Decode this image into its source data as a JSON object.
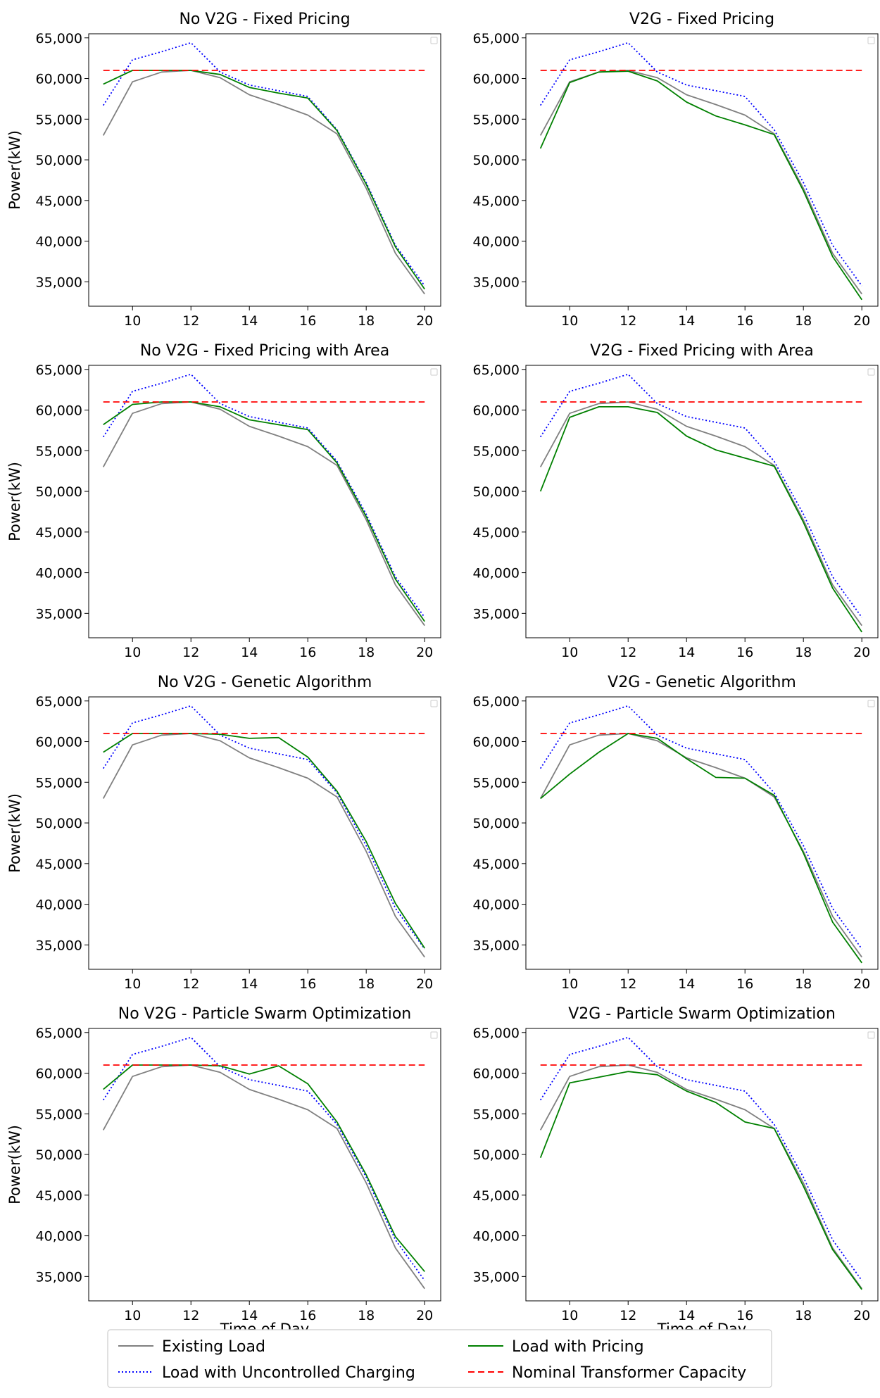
{
  "figure": {
    "xlabel": "Time of Day",
    "ylabel": "Power(kW)",
    "x_ticks": [
      10,
      12,
      14,
      16,
      18,
      20
    ],
    "y_ticks": [
      35000,
      40000,
      45000,
      50000,
      55000,
      60000,
      65000
    ],
    "y_tick_labels": [
      "35,000",
      "40,000",
      "45,000",
      "50,000",
      "55,000",
      "60,000",
      "65,000"
    ]
  },
  "legend": {
    "placement": "bottom-center",
    "items": [
      {
        "label": "Existing Load",
        "color": "#808080",
        "style": "solid"
      },
      {
        "label": "Load with Uncontrolled Charging",
        "color": "#0000ff",
        "style": "dotted"
      },
      {
        "label": "Load with Pricing",
        "color": "#008000",
        "style": "solid"
      },
      {
        "label": "Nominal Transformer Capacity",
        "color": "#ff0000",
        "style": "dashed"
      }
    ]
  },
  "chart_data": [
    {
      "type": "line",
      "title": "No V2G - Fixed Pricing",
      "x": [
        9,
        10,
        11,
        12,
        13,
        14,
        15,
        16,
        17,
        18,
        19,
        20
      ],
      "ylim": [
        32000,
        65500
      ],
      "xlim": [
        8.5,
        20.55
      ],
      "series": [
        {
          "name": "Existing Load",
          "color": "#808080",
          "values": [
            53000,
            59600,
            60800,
            61000,
            60100,
            58000,
            56800,
            55500,
            53200,
            46500,
            38500,
            33500
          ]
        },
        {
          "name": "Load with Uncontrolled Charging",
          "color": "#0000ff",
          "values": [
            56700,
            62300,
            63300,
            64400,
            60800,
            59200,
            58500,
            57800,
            53700,
            47200,
            39500,
            34500
          ]
        },
        {
          "name": "Load with Pricing",
          "color": "#008000",
          "values": [
            59300,
            61000,
            61000,
            61000,
            60500,
            58900,
            58200,
            57600,
            53600,
            47000,
            39300,
            34100
          ]
        },
        {
          "name": "Nominal Transformer Capacity",
          "color": "#ff0000",
          "values": [
            61000,
            61000,
            61000,
            61000,
            61000,
            61000,
            61000,
            61000,
            61000,
            61000,
            61000,
            61000
          ]
        }
      ]
    },
    {
      "type": "line",
      "title": "V2G - Fixed Pricing",
      "x": [
        9,
        10,
        11,
        12,
        13,
        14,
        15,
        16,
        17,
        18,
        19,
        20
      ],
      "ylim": [
        32000,
        65500
      ],
      "xlim": [
        8.5,
        20.55
      ],
      "series": [
        {
          "name": "Existing Load",
          "color": "#808080",
          "values": [
            53000,
            59600,
            60800,
            61000,
            60100,
            58000,
            56800,
            55500,
            53200,
            46500,
            38500,
            33500
          ]
        },
        {
          "name": "Load with Uncontrolled Charging",
          "color": "#0000ff",
          "values": [
            56700,
            62300,
            63300,
            64400,
            60800,
            59200,
            58500,
            57800,
            53700,
            47200,
            39500,
            34500
          ]
        },
        {
          "name": "Load with Pricing",
          "color": "#008000",
          "values": [
            51400,
            59500,
            60800,
            60900,
            59700,
            57100,
            55400,
            54300,
            53100,
            46200,
            38100,
            32800
          ]
        },
        {
          "name": "Nominal Transformer Capacity",
          "color": "#ff0000",
          "values": [
            61000,
            61000,
            61000,
            61000,
            61000,
            61000,
            61000,
            61000,
            61000,
            61000,
            61000,
            61000
          ]
        }
      ]
    },
    {
      "type": "line",
      "title": "No V2G - Fixed Pricing with Area",
      "x": [
        9,
        10,
        11,
        12,
        13,
        14,
        15,
        16,
        17,
        18,
        19,
        20
      ],
      "ylim": [
        32000,
        65500
      ],
      "xlim": [
        8.5,
        20.55
      ],
      "series": [
        {
          "name": "Existing Load",
          "color": "#808080",
          "values": [
            53000,
            59600,
            60800,
            61000,
            60100,
            58000,
            56800,
            55500,
            53200,
            46500,
            38500,
            33500
          ]
        },
        {
          "name": "Load with Uncontrolled Charging",
          "color": "#0000ff",
          "values": [
            56700,
            62300,
            63300,
            64400,
            60800,
            59200,
            58500,
            57800,
            53700,
            47200,
            39500,
            34500
          ]
        },
        {
          "name": "Load with Pricing",
          "color": "#008000",
          "values": [
            58200,
            60700,
            61000,
            61000,
            60400,
            58800,
            58200,
            57600,
            53500,
            46900,
            39200,
            34000
          ]
        },
        {
          "name": "Nominal Transformer Capacity",
          "color": "#ff0000",
          "values": [
            61000,
            61000,
            61000,
            61000,
            61000,
            61000,
            61000,
            61000,
            61000,
            61000,
            61000,
            61000
          ]
        }
      ]
    },
    {
      "type": "line",
      "title": "V2G - Fixed Pricing with Area",
      "x": [
        9,
        10,
        11,
        12,
        13,
        14,
        15,
        16,
        17,
        18,
        19,
        20
      ],
      "ylim": [
        32000,
        65500
      ],
      "xlim": [
        8.5,
        20.55
      ],
      "series": [
        {
          "name": "Existing Load",
          "color": "#808080",
          "values": [
            53000,
            59600,
            60800,
            61000,
            60100,
            58000,
            56800,
            55500,
            53200,
            46500,
            38500,
            33500
          ]
        },
        {
          "name": "Load with Uncontrolled Charging",
          "color": "#0000ff",
          "values": [
            56700,
            62300,
            63300,
            64400,
            60800,
            59200,
            58500,
            57800,
            53700,
            47200,
            39500,
            34500
          ]
        },
        {
          "name": "Load with Pricing",
          "color": "#008000",
          "values": [
            50000,
            59100,
            60400,
            60400,
            59700,
            56800,
            55100,
            54100,
            53100,
            46200,
            38100,
            32700
          ]
        },
        {
          "name": "Nominal Transformer Capacity",
          "color": "#ff0000",
          "values": [
            61000,
            61000,
            61000,
            61000,
            61000,
            61000,
            61000,
            61000,
            61000,
            61000,
            61000,
            61000
          ]
        }
      ]
    },
    {
      "type": "line",
      "title": "No V2G - Genetic Algorithm",
      "x": [
        9,
        10,
        11,
        12,
        13,
        14,
        15,
        16,
        17,
        18,
        19,
        20
      ],
      "ylim": [
        32000,
        65500
      ],
      "xlim": [
        8.5,
        20.55
      ],
      "series": [
        {
          "name": "Existing Load",
          "color": "#808080",
          "values": [
            53000,
            59600,
            60800,
            61000,
            60100,
            58000,
            56800,
            55500,
            53200,
            46500,
            38500,
            33500
          ]
        },
        {
          "name": "Load with Uncontrolled Charging",
          "color": "#0000ff",
          "values": [
            56700,
            62300,
            63300,
            64400,
            60800,
            59200,
            58500,
            57800,
            53700,
            47200,
            39500,
            34500
          ]
        },
        {
          "name": "Load with Pricing",
          "color": "#008000",
          "values": [
            58700,
            61000,
            61000,
            61000,
            60900,
            60400,
            60500,
            58100,
            53900,
            47700,
            40100,
            34600
          ]
        },
        {
          "name": "Nominal Transformer Capacity",
          "color": "#ff0000",
          "values": [
            61000,
            61000,
            61000,
            61000,
            61000,
            61000,
            61000,
            61000,
            61000,
            61000,
            61000,
            61000
          ]
        }
      ]
    },
    {
      "type": "line",
      "title": "V2G - Genetic Algorithm",
      "x": [
        9,
        10,
        11,
        12,
        13,
        14,
        15,
        16,
        17,
        18,
        19,
        20
      ],
      "ylim": [
        32000,
        65500
      ],
      "xlim": [
        8.5,
        20.55
      ],
      "series": [
        {
          "name": "Existing Load",
          "color": "#808080",
          "values": [
            53000,
            59600,
            60800,
            61000,
            60100,
            58000,
            56800,
            55500,
            53200,
            46500,
            38500,
            33500
          ]
        },
        {
          "name": "Load with Uncontrolled Charging",
          "color": "#0000ff",
          "values": [
            56700,
            62300,
            63300,
            64400,
            60800,
            59200,
            58500,
            57800,
            53700,
            47200,
            39500,
            34500
          ]
        },
        {
          "name": "Load with Pricing",
          "color": "#008000",
          "values": [
            53000,
            56000,
            58700,
            61000,
            60400,
            57900,
            55600,
            55500,
            53400,
            46300,
            37800,
            32800
          ]
        },
        {
          "name": "Nominal Transformer Capacity",
          "color": "#ff0000",
          "values": [
            61000,
            61000,
            61000,
            61000,
            61000,
            61000,
            61000,
            61000,
            61000,
            61000,
            61000,
            61000
          ]
        }
      ]
    },
    {
      "type": "line",
      "title": "No V2G - Particle Swarm Optimization",
      "x": [
        9,
        10,
        11,
        12,
        13,
        14,
        15,
        16,
        17,
        18,
        19,
        20
      ],
      "ylim": [
        32000,
        65500
      ],
      "xlim": [
        8.5,
        20.55
      ],
      "series": [
        {
          "name": "Existing Load",
          "color": "#808080",
          "values": [
            53000,
            59600,
            60800,
            61000,
            60100,
            58000,
            56800,
            55500,
            53200,
            46500,
            38500,
            33500
          ]
        },
        {
          "name": "Load with Uncontrolled Charging",
          "color": "#0000ff",
          "values": [
            56700,
            62300,
            63300,
            64400,
            60800,
            59200,
            58500,
            57800,
            53700,
            47200,
            39500,
            34500
          ]
        },
        {
          "name": "Load with Pricing",
          "color": "#008000",
          "values": [
            58000,
            61000,
            61000,
            61000,
            60900,
            59900,
            60900,
            58700,
            54000,
            47500,
            39900,
            35600
          ]
        },
        {
          "name": "Nominal Transformer Capacity",
          "color": "#ff0000",
          "values": [
            61000,
            61000,
            61000,
            61000,
            61000,
            61000,
            61000,
            61000,
            61000,
            61000,
            61000,
            61000
          ]
        }
      ]
    },
    {
      "type": "line",
      "title": "V2G - Particle Swarm Optimization",
      "x": [
        9,
        10,
        11,
        12,
        13,
        14,
        15,
        16,
        17,
        18,
        19,
        20
      ],
      "ylim": [
        32000,
        65500
      ],
      "xlim": [
        8.5,
        20.55
      ],
      "series": [
        {
          "name": "Existing Load",
          "color": "#808080",
          "values": [
            53000,
            59600,
            60800,
            61000,
            60100,
            58000,
            56800,
            55500,
            53200,
            46500,
            38500,
            33500
          ]
        },
        {
          "name": "Load with Uncontrolled Charging",
          "color": "#0000ff",
          "values": [
            56700,
            62300,
            63300,
            64400,
            60800,
            59200,
            58500,
            57800,
            53700,
            47200,
            39500,
            34500
          ]
        },
        {
          "name": "Load with Pricing",
          "color": "#008000",
          "values": [
            49600,
            58800,
            59500,
            60200,
            59800,
            57800,
            56400,
            54000,
            53200,
            46100,
            38300,
            33400
          ]
        },
        {
          "name": "Nominal Transformer Capacity",
          "color": "#ff0000",
          "values": [
            61000,
            61000,
            61000,
            61000,
            61000,
            61000,
            61000,
            61000,
            61000,
            61000,
            61000,
            61000
          ]
        }
      ]
    }
  ]
}
